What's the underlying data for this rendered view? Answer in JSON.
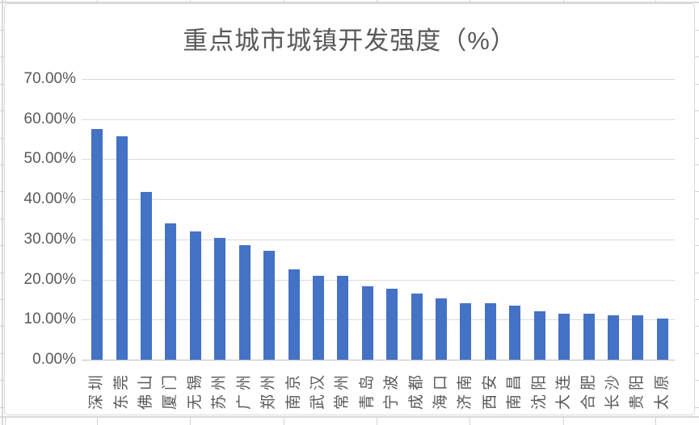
{
  "chart_data": {
    "type": "bar",
    "title": "重点城市城镇开发强度（%）",
    "categories": [
      "深圳",
      "东莞",
      "佛山",
      "厦门",
      "无锡",
      "苏州",
      "广州",
      "郑州",
      "南京",
      "武汉",
      "常州",
      "青岛",
      "宁波",
      "成都",
      "海口",
      "济南",
      "西安",
      "南昌",
      "沈阳",
      "大连",
      "合肥",
      "长沙",
      "贵阳",
      "太原"
    ],
    "values": [
      57.6,
      55.8,
      41.8,
      34.0,
      32.0,
      30.3,
      28.5,
      27.2,
      22.6,
      21.0,
      20.9,
      18.4,
      17.8,
      16.4,
      15.3,
      14.0,
      14.0,
      13.5,
      12.1,
      11.4,
      11.4,
      11.0,
      11.0,
      10.3
    ],
    "unit": "%",
    "ylim": [
      0,
      70
    ],
    "y_tick_step": 10,
    "y_tick_labels": [
      "0.00%",
      "10.00%",
      "20.00%",
      "30.00%",
      "40.00%",
      "50.00%",
      "60.00%",
      "70.00%"
    ],
    "grid": true,
    "legend": "none",
    "colors": {
      "bar": "#4472c4",
      "title_text": "#595959",
      "axis_text": "#595959",
      "gridline": "#d9d9d9",
      "axis_line": "#bfbfbf",
      "sheet_gridline": "#d9d9d9",
      "chart_border": "#d9d9d9"
    }
  }
}
